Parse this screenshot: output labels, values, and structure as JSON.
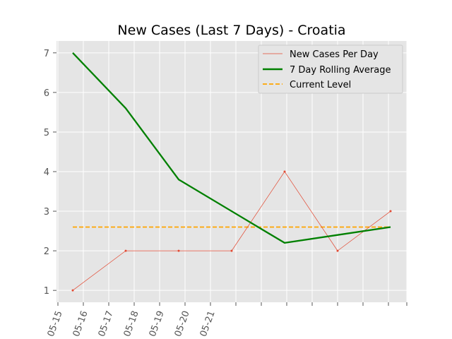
{
  "chart_data": {
    "type": "line",
    "title": "New Cases (Last 7 Days) - Croatia",
    "xlabel": "",
    "ylabel": "",
    "x_tick_labels": [
      "05-15",
      "05-16",
      "05-17",
      "05-18",
      "05-19",
      "05-20",
      "05-21"
    ],
    "ylim": [
      0.7,
      7.3
    ],
    "yticks": [
      1,
      2,
      3,
      4,
      5,
      6,
      7
    ],
    "grid": true,
    "legend_position": "top-right",
    "series": [
      {
        "name": "New Cases Per Day",
        "x": [
          "05-15",
          "05-16",
          "05-17",
          "05-18",
          "05-19",
          "05-20",
          "05-21"
        ],
        "values": [
          1,
          2,
          2,
          2,
          4,
          2,
          3
        ],
        "color": "#e24a33",
        "style": "thin-solid-with-markers"
      },
      {
        "name": "7 Day Rolling Average",
        "x": [
          "05-15",
          "05-16",
          "05-17",
          "05-18",
          "05-19",
          "05-20",
          "05-21"
        ],
        "values": [
          7.0,
          5.6,
          3.8,
          3.0,
          2.2,
          2.4,
          2.6
        ],
        "color": "#008000",
        "style": "thick-solid"
      },
      {
        "name": "Current Level",
        "x": [
          "05-15",
          "05-21"
        ],
        "values": [
          2.6,
          2.6
        ],
        "color": "#ffa500",
        "style": "dashed"
      }
    ]
  }
}
